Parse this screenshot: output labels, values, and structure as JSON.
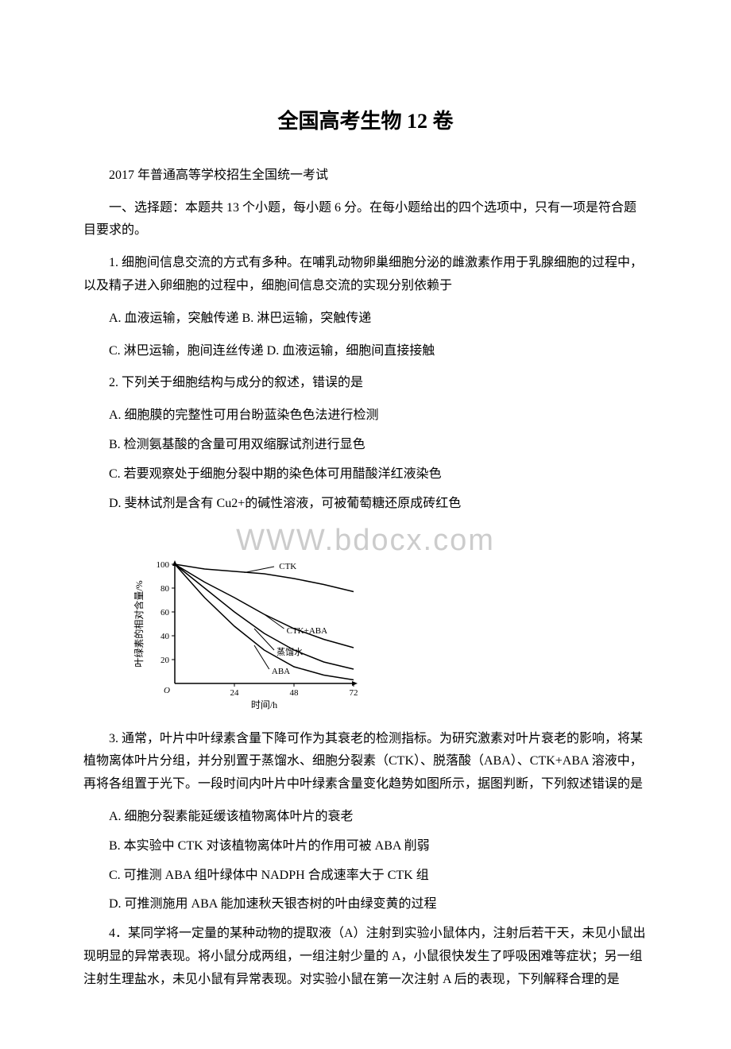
{
  "title": "全国高考生物 12 卷",
  "intro": "2017 年普通高等学校招生全国统一考试",
  "section1_header": "一、选择题：本题共 13 个小题，每小题 6 分。在每小题给出的四个选项中，只有一项是符合题目要求的。",
  "q1": {
    "text": "1. 细胞间信息交流的方式有多种。在哺乳动物卵巢细胞分泌的雌激素作用于乳腺细胞的过程中，以及精子进入卵细胞的过程中，细胞间信息交流的实现分别依赖于",
    "optAB": "A. 血液运输，突触传递  B. 淋巴运输，突触传递",
    "optCD": "C. 淋巴运输，胞间连丝传递  D. 血液运输，细胞间直接接触"
  },
  "q2": {
    "text": "2. 下列关于细胞结构与成分的叙述，错误的是",
    "optA": "A. 细胞膜的完整性可用台盼蓝染色色法进行检测",
    "optB": "B. 检测氨基酸的含量可用双缩脲试剂进行显色",
    "optC": "C. 若要观察处于细胞分裂中期的染色体可用醋酸洋红液染色",
    "optD": "D. 斐林试剂是含有 Cu2+的碱性溶液，可被葡萄糖还原成砖红色"
  },
  "watermark_text": "WWW.bdocx.com",
  "chart": {
    "type": "line",
    "x_label": "时间/h",
    "y_label": "叶绿素的相对含量/%",
    "y_ticks": [
      0,
      20,
      40,
      60,
      80,
      100
    ],
    "x_ticks": [
      24,
      48,
      72
    ],
    "series": [
      {
        "name": "CTK",
        "color": "#000000",
        "points": [
          [
            0,
            100
          ],
          [
            12,
            96
          ],
          [
            24,
            94
          ],
          [
            36,
            92
          ],
          [
            48,
            88
          ],
          [
            60,
            83
          ],
          [
            72,
            77
          ]
        ]
      },
      {
        "name": "CTK+ABA",
        "color": "#000000",
        "points": [
          [
            0,
            100
          ],
          [
            12,
            85
          ],
          [
            24,
            72
          ],
          [
            36,
            58
          ],
          [
            48,
            46
          ],
          [
            60,
            37
          ],
          [
            72,
            30
          ]
        ]
      },
      {
        "name": "蒸馏水",
        "color": "#000000",
        "points": [
          [
            0,
            100
          ],
          [
            12,
            80
          ],
          [
            24,
            60
          ],
          [
            36,
            42
          ],
          [
            48,
            28
          ],
          [
            60,
            18
          ],
          [
            72,
            12
          ]
        ]
      },
      {
        "name": "ABA",
        "color": "#000000",
        "points": [
          [
            0,
            100
          ],
          [
            12,
            72
          ],
          [
            24,
            48
          ],
          [
            36,
            28
          ],
          [
            48,
            14
          ],
          [
            60,
            7
          ],
          [
            72,
            3
          ]
        ]
      }
    ],
    "axis_color": "#000000",
    "label_fontsize": 12,
    "tick_fontsize": 11,
    "annotation_fontsize": 11
  },
  "q3": {
    "text": "3. 通常，叶片中叶绿素含量下降可作为其衰老的检测指标。为研究激素对叶片衰老的影响，将某植物离体叶片分组，并分别置于蒸馏水、细胞分裂素（CTK）、脱落酸（ABA）、CTK+ABA 溶液中，再将各组置于光下。一段时间内叶片中叶绿素含量变化趋势如图所示，据图判断，下列叙述错误的是",
    "optA": "A. 细胞分裂素能延缓该植物离体叶片的衰老",
    "optB": "B. 本实验中 CTK 对该植物离体叶片的作用可被 ABA 削弱",
    "optC": "C. 可推测 ABA 组叶绿体中 NADPH 合成速率大于 CTK 组",
    "optD": "D. 可推测施用 ABA 能加速秋天银杏树的叶由绿变黄的过程"
  },
  "q4": {
    "text": "4．某同学将一定量的某种动物的提取液（A）注射到实验小鼠体内，注射后若干天，未见小鼠出现明显的异常表现。将小鼠分成两组，一组注射少量的 A，小鼠很快发生了呼吸困难等症状；另一组注射生理盐水，未见小鼠有异常表现。对实验小鼠在第一次注射 A 后的表现，下列解释合理的是"
  }
}
